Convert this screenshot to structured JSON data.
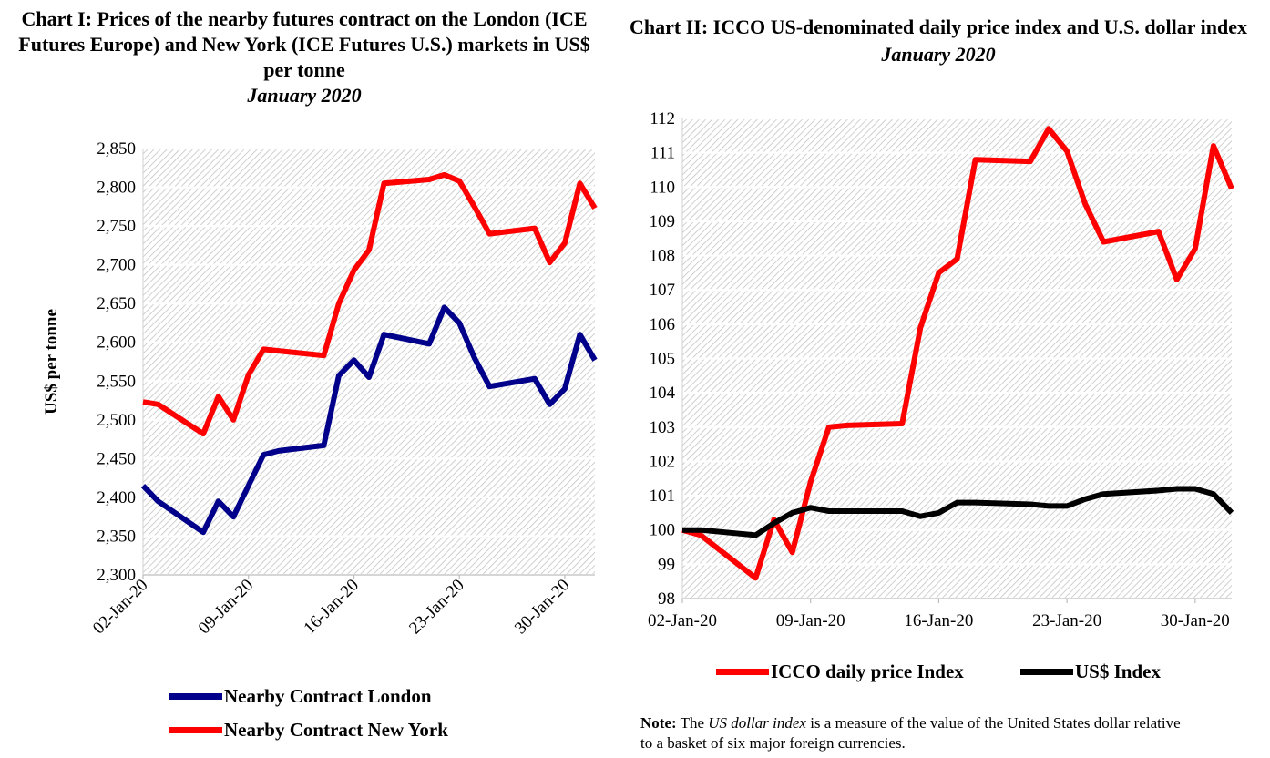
{
  "chart_data": [
    {
      "type": "line",
      "title": "Chart I: Prices of the nearby futures contract on the London (ICE Futures Europe) and New York (ICE Futures U.S.) markets in US$ per tonne",
      "subtitle": "January 2020",
      "xlabel": "",
      "ylabel": "US$ per tonne",
      "ylim": [
        2300,
        2850
      ],
      "yticks": [
        "2,300",
        "2,350",
        "2,400",
        "2,450",
        "2,500",
        "2,550",
        "2,600",
        "2,650",
        "2,700",
        "2,750",
        "2,800",
        "2,850"
      ],
      "xrange": [
        2,
        32
      ],
      "xticks": [
        {
          "day": 2,
          "label": "02-Jan-20"
        },
        {
          "day": 9,
          "label": "09-Jan-20"
        },
        {
          "day": 16,
          "label": "16-Jan-20"
        },
        {
          "day": 23,
          "label": "23-Jan-20"
        },
        {
          "day": 30,
          "label": "30-Jan-20"
        }
      ],
      "grid": true,
      "legend_position": "bottom",
      "series": [
        {
          "name": "Nearby Contract London",
          "color": "#00008b",
          "x": [
            2,
            3,
            6,
            7,
            8,
            9,
            10,
            11,
            14,
            15,
            16,
            17,
            18,
            21,
            22,
            23,
            24,
            25,
            28,
            29,
            30,
            31,
            32
          ],
          "values": [
            2415,
            2395,
            2355,
            2395,
            2375,
            2415,
            2455,
            2460,
            2467,
            2557,
            2577,
            2555,
            2610,
            2598,
            2645,
            2625,
            2580,
            2543,
            2553,
            2520,
            2540,
            2610,
            2577
          ]
        },
        {
          "name": "Nearby Contract New York",
          "color": "#ff0000",
          "x": [
            2,
            3,
            6,
            7,
            8,
            9,
            10,
            11,
            14,
            15,
            16,
            17,
            18,
            21,
            22,
            23,
            24,
            25,
            28,
            29,
            30,
            31,
            32
          ],
          "values": [
            2523,
            2520,
            2482,
            2530,
            2500,
            2558,
            2591,
            2589,
            2583,
            2650,
            2693,
            2719,
            2805,
            2810,
            2816,
            2808,
            2775,
            2740,
            2747,
            2703,
            2728,
            2805,
            2773
          ]
        }
      ]
    },
    {
      "type": "line",
      "title": "Chart II: ICCO US-denominated daily price index and U.S. dollar index",
      "subtitle": "January 2020",
      "xlabel": "",
      "ylabel": "",
      "ylim": [
        98,
        112
      ],
      "yticks": [
        "98",
        "99",
        "100",
        "101",
        "102",
        "103",
        "104",
        "105",
        "106",
        "107",
        "108",
        "109",
        "110",
        "111",
        "112"
      ],
      "xrange": [
        2,
        32
      ],
      "xticks": [
        {
          "day": 2,
          "label": "02-Jan-20"
        },
        {
          "day": 9,
          "label": "09-Jan-20"
        },
        {
          "day": 16,
          "label": "16-Jan-20"
        },
        {
          "day": 23,
          "label": "23-Jan-20"
        },
        {
          "day": 30,
          "label": "30-Jan-20"
        }
      ],
      "grid": true,
      "legend_position": "bottom",
      "series": [
        {
          "name": "ICCO daily price Index",
          "color": "#ff0000",
          "x": [
            2,
            3,
            6,
            7,
            8,
            9,
            10,
            11,
            14,
            15,
            16,
            17,
            18,
            21,
            22,
            23,
            24,
            25,
            28,
            29,
            30,
            31,
            32
          ],
          "values": [
            100,
            99.85,
            98.6,
            100.3,
            99.35,
            101.4,
            103,
            103.05,
            103.1,
            105.9,
            107.5,
            107.9,
            110.8,
            110.75,
            111.7,
            111.05,
            109.5,
            108.4,
            108.7,
            107.3,
            108.2,
            111.2,
            109.95
          ]
        },
        {
          "name": "US$ Index",
          "color": "#000000",
          "x": [
            2,
            3,
            6,
            7,
            8,
            9,
            10,
            11,
            14,
            15,
            16,
            17,
            18,
            21,
            22,
            23,
            24,
            25,
            28,
            29,
            30,
            31,
            32
          ],
          "values": [
            100,
            100,
            99.85,
            100.2,
            100.5,
            100.65,
            100.55,
            100.55,
            100.55,
            100.4,
            100.5,
            100.8,
            100.8,
            100.75,
            100.7,
            100.7,
            100.9,
            101.05,
            101.15,
            101.2,
            101.2,
            101.05,
            100.5
          ]
        }
      ]
    }
  ],
  "note": {
    "label": "Note:",
    "text_pre": " The ",
    "italic": "US dollar index",
    "text_post": " is a measure of the value of the United States dollar relative to a basket of six major foreign currencies."
  }
}
